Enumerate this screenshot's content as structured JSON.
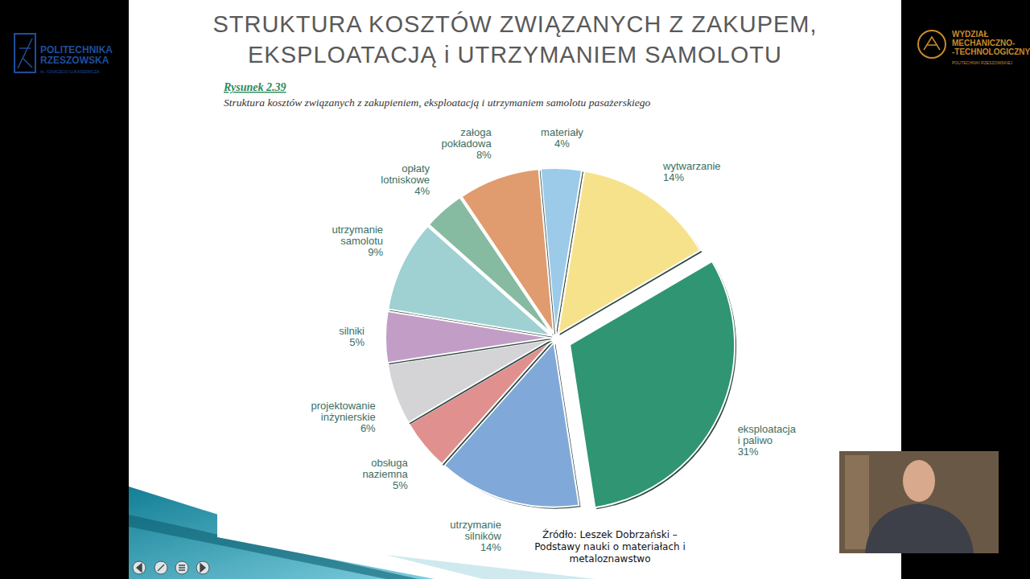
{
  "slide": {
    "title": [
      "STRUKTURA KOSZTÓW ZWIĄZANYCH Z ZAKUPEM,",
      "EKSPLOATACJĄ i UTRZYMANIEM SAMOLOTU"
    ],
    "logo_left": {
      "lines": [
        "POLITECHNIKA",
        "RZESZOWSKA"
      ],
      "subtitle": "im. IGNACEGO ŁUKASIEWICZA"
    },
    "logo_right": {
      "lines": [
        "WYDZIAŁ",
        "MECHANICZNO-",
        "-TECHNOLOGICZNY"
      ],
      "subtitle": "POLITECHNIKI RZESZOWSKIEJ"
    },
    "source": "Źródło: Leszek Dobrzański – Podstawy nauki o materiałach i metaloznawstwo"
  },
  "chart_data": {
    "type": "pie",
    "title": "Rysunek 2.39",
    "subtitle": "Struktura kosztów związanych z zakupieniem, eksploatacją i utrzymaniem samolotu pasażerskiego",
    "categories": [
      "materiały",
      "wytwarzanie",
      "eksploatacja i paliwo",
      "utrzymanie silników",
      "obsługa naziemna",
      "projektowanie inżynierskie",
      "silniki",
      "utrzymanie samolotu",
      "opłaty lotniskowe",
      "załoga pokładowa"
    ],
    "values": [
      4,
      14,
      31,
      14,
      5,
      6,
      5,
      9,
      4,
      8
    ],
    "value_labels": [
      "4%",
      "14%",
      "31%",
      "14%",
      "5%",
      "6%",
      "5%",
      "9%",
      "4%",
      "8%"
    ],
    "colors": [
      "#9ccae9",
      "#f7e28c",
      "#2f9572",
      "#80a9d9",
      "#e0908f",
      "#d4d4d7",
      "#c29dc6",
      "#9fd0d2",
      "#86bba1",
      "#e09c6e"
    ],
    "data_labels": true
  }
}
